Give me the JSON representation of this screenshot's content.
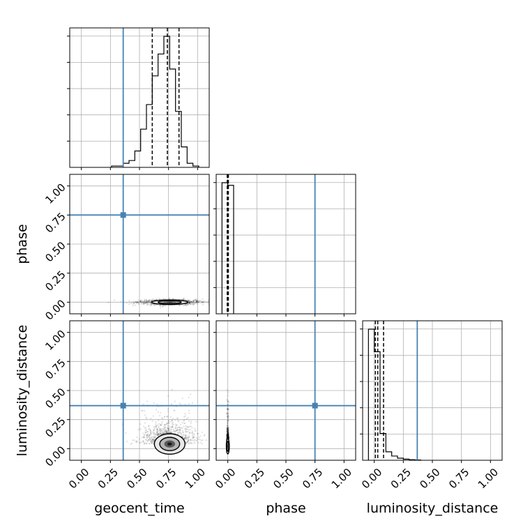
{
  "chart_data": {
    "type": "corner",
    "parameters": [
      "geocent_time",
      "phase",
      "luminosity_distance"
    ],
    "tick_values": [
      0.0,
      0.25,
      0.5,
      0.75,
      1.0
    ],
    "tick_labels": [
      "0.00",
      "0.25",
      "0.50",
      "0.75",
      "1.00"
    ],
    "axis_range": [
      -0.1,
      1.1
    ],
    "grid": true,
    "truth_color": "#4682b4",
    "truths": {
      "geocent_time": 0.36,
      "phase": 0.75,
      "luminosity_distance": 0.37
    },
    "histograms": [
      {
        "parameter": "geocent_time",
        "bin_edges": [
          0.26,
          0.31,
          0.36,
          0.41,
          0.46,
          0.51,
          0.56,
          0.61,
          0.66,
          0.71,
          0.76,
          0.81,
          0.86,
          0.91,
          0.96,
          1.01
        ],
        "counts": [
          1,
          1,
          3,
          5,
          12,
          28,
          46,
          67,
          83,
          96,
          72,
          41,
          15,
          3,
          1
        ],
        "quantiles": [
          0.61,
          0.74,
          0.84
        ]
      },
      {
        "parameter": "phase",
        "bin_edges": [
          -0.05,
          0.0,
          0.05
        ],
        "counts": [
          50,
          49
        ],
        "quantiles": [
          -0.005,
          0.0,
          0.005
        ]
      },
      {
        "parameter": "luminosity_distance",
        "bin_edges": [
          -0.05,
          0.0,
          0.05,
          0.1,
          0.15,
          0.2,
          0.25,
          0.3,
          0.35,
          0.4
        ],
        "counts": [
          93,
          77,
          19,
          6,
          3,
          1.5,
          0.8,
          0.4,
          0.2
        ],
        "quantiles": [
          0.01,
          0.03,
          0.08
        ]
      }
    ],
    "scatter_panels": [
      {
        "x": "geocent_time",
        "y": "phase",
        "center": [
          0.76,
          0.0
        ],
        "spread": [
          0.14,
          0.012
        ]
      },
      {
        "x": "geocent_time",
        "y": "luminosity_distance",
        "center": [
          0.76,
          0.04
        ],
        "spread": [
          0.12,
          0.08
        ]
      },
      {
        "x": "phase",
        "y": "luminosity_distance",
        "center": [
          0.0,
          0.02
        ],
        "spread": [
          0.004,
          0.06
        ]
      }
    ]
  }
}
